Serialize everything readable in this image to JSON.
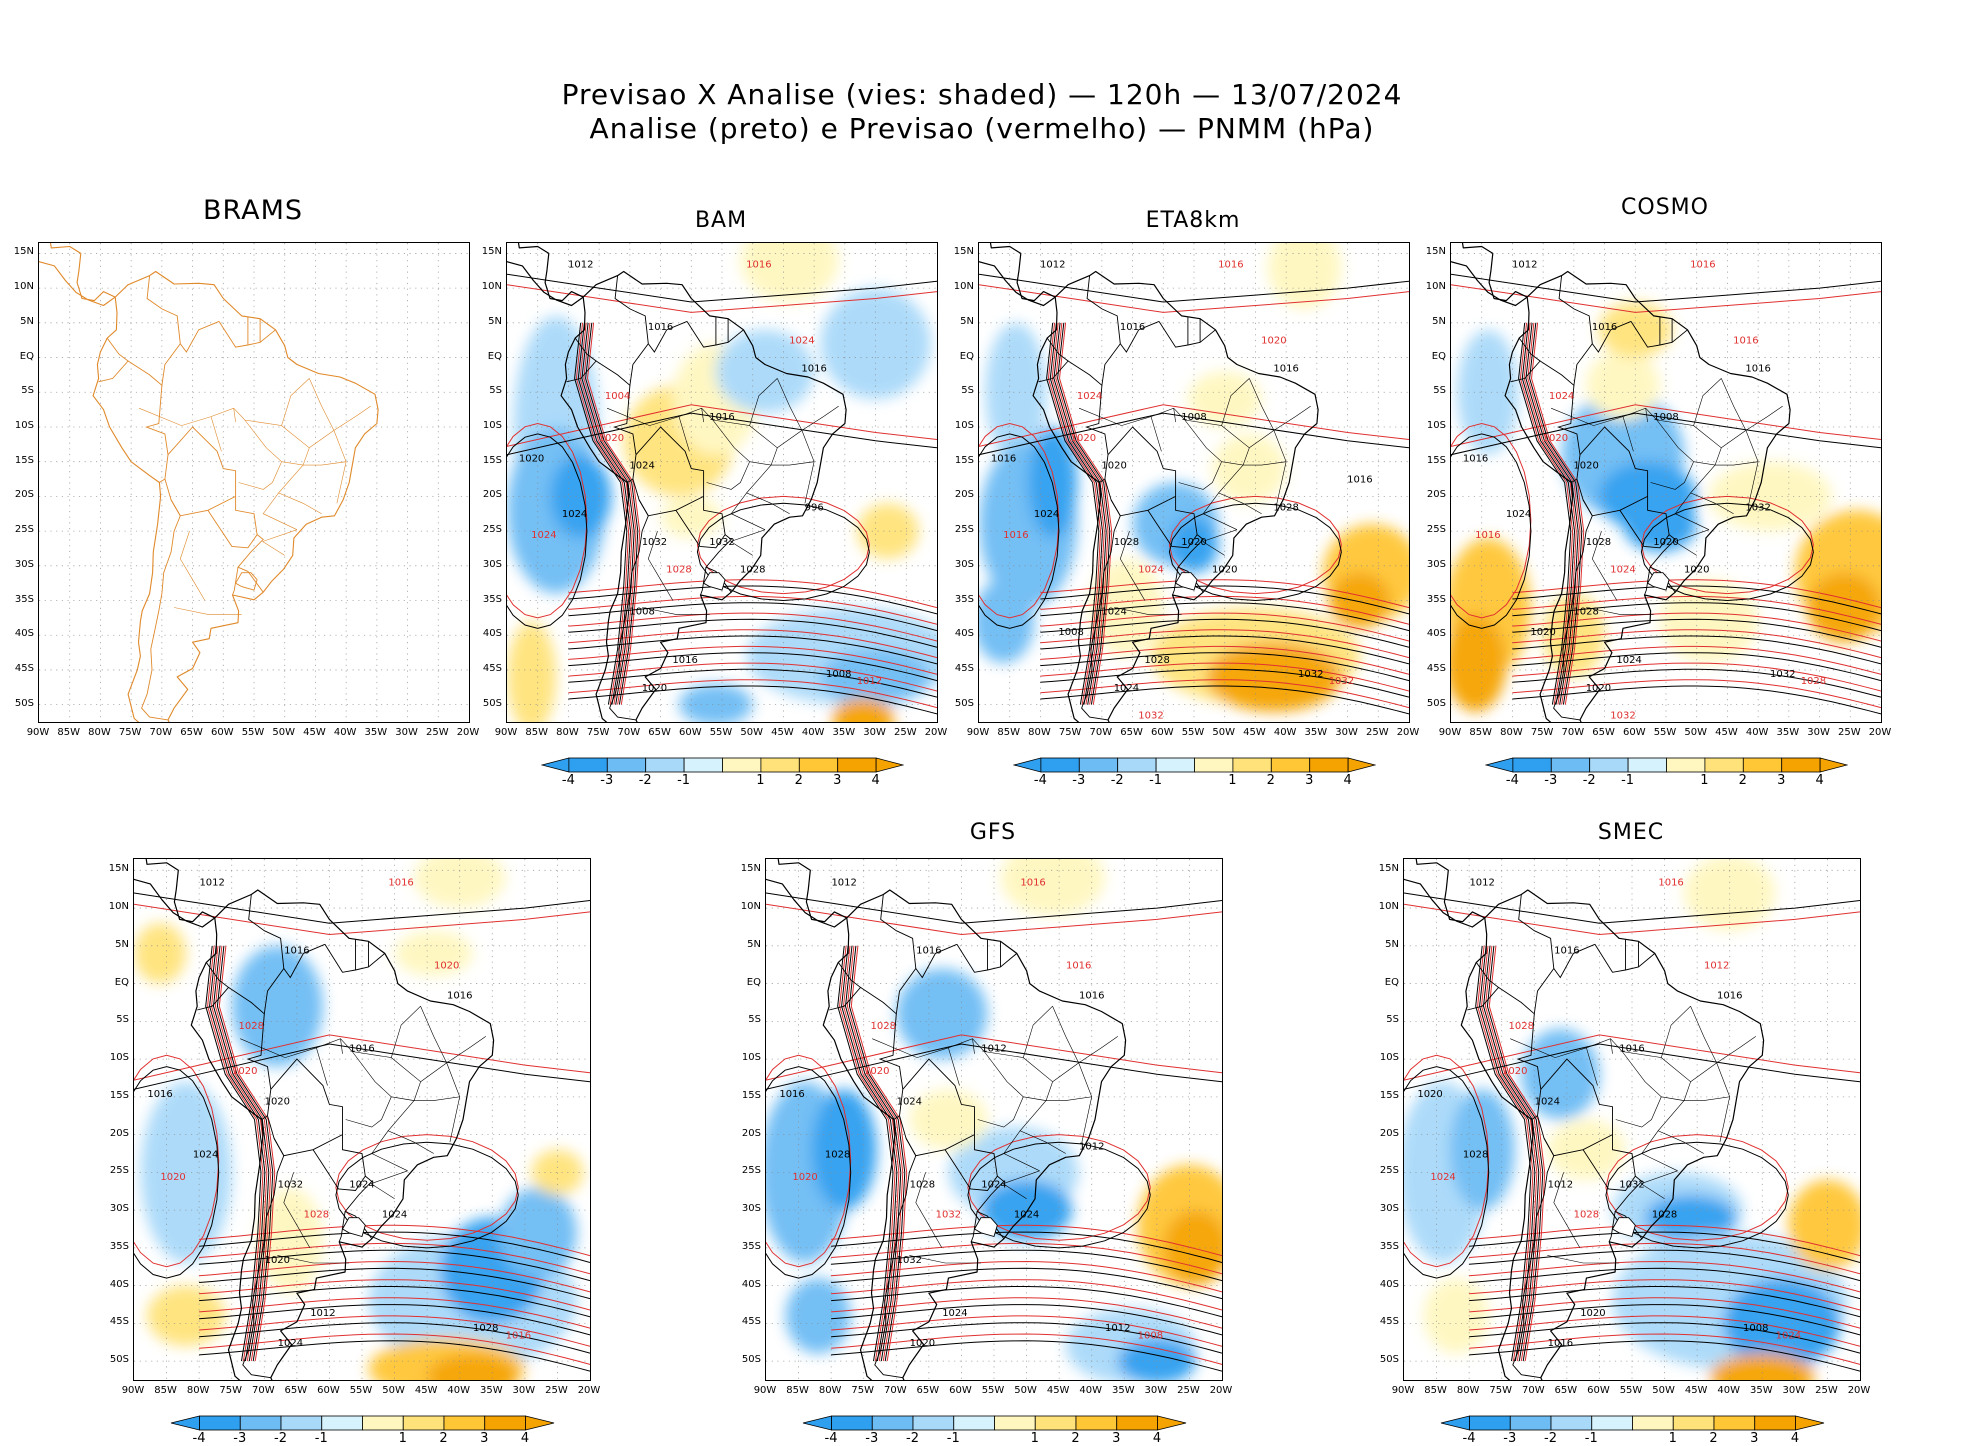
{
  "header": {
    "line1": "Previsao X Analise (vies: shaded) — 120h — 13/07/2024",
    "line2": "Analise (preto) e Previsao (vermelho) — PNMM (hPa)"
  },
  "colors": {
    "bias_neg4": "#2f9ff0",
    "bias_neg3": "#6dbcf4",
    "bias_neg2": "#a9d9f9",
    "bias_neg1": "#d6f2fd",
    "bias_zero": "#ffffff",
    "bias_pos1": "#fff7bf",
    "bias_pos2": "#ffe37a",
    "bias_pos3": "#ffc636",
    "bias_pos4": "#f5a300",
    "analysis_contour": "#000000",
    "forecast_contour": "#e03030",
    "coastline_brams": "#e0892a"
  },
  "axes": {
    "lat_labels": [
      "15N",
      "10N",
      "5N",
      "EQ",
      "5S",
      "10S",
      "15S",
      "20S",
      "25S",
      "30S",
      "35S",
      "40S",
      "45S",
      "50S"
    ],
    "lon_labels": [
      "90W",
      "85W",
      "80W",
      "75W",
      "70W",
      "65W",
      "60W",
      "55W",
      "50W",
      "45W",
      "40W",
      "35W",
      "30W",
      "25W",
      "20W"
    ]
  },
  "colorbar": {
    "labels": [
      "-4",
      "-3",
      "-2",
      "-1",
      "1",
      "2",
      "3",
      "4"
    ]
  },
  "panels": [
    {
      "id": "brams",
      "title": "BRAMS",
      "has_colorbar": false
    },
    {
      "id": "bam",
      "title": "BAM",
      "has_colorbar": true
    },
    {
      "id": "eta8km",
      "title": "ETA8km",
      "has_colorbar": true
    },
    {
      "id": "cosmo",
      "title": "COSMO",
      "has_colorbar": true
    },
    {
      "id": "model5",
      "title": "",
      "has_colorbar": true
    },
    {
      "id": "gfs",
      "title": "GFS",
      "has_colorbar": true
    },
    {
      "id": "smec",
      "title": "SMEC",
      "has_colorbar": true
    }
  ],
  "isobar_labels": {
    "bam": [
      "1012",
      "1016",
      "1016",
      "1016",
      "1020",
      "1024",
      "1024",
      "1028",
      "1032",
      "1008",
      "1012",
      "1016",
      "1020",
      "1024",
      "1016",
      "1020",
      "1024",
      "1028",
      "1032",
      "1004",
      "1008",
      "996"
    ],
    "eta8km": [
      "1012",
      "1016",
      "1016",
      "1016",
      "1020",
      "1020",
      "1024",
      "1024",
      "1028",
      "1032",
      "1032",
      "1028",
      "1024",
      "1020",
      "1008",
      "1016",
      "1016",
      "1020",
      "1020",
      "1024",
      "1024",
      "1028",
      "1032",
      "1008",
      "1016"
    ],
    "cosmo": [
      "1012",
      "1016",
      "1016",
      "1016",
      "1020",
      "1020",
      "1024",
      "1024",
      "1028",
      "1032",
      "1028",
      "1024",
      "1020",
      "1016",
      "1008",
      "1016",
      "1016",
      "1020",
      "1020",
      "1024",
      "1028",
      "1032",
      "1032",
      "1020"
    ],
    "model5": [
      "1012",
      "1016",
      "1016",
      "1016",
      "1020",
      "1020",
      "1024",
      "1028",
      "1032",
      "1028",
      "1016",
      "1012",
      "1024",
      "1020",
      "1016",
      "1016",
      "1020",
      "1024",
      "1024",
      "1028",
      "1020"
    ],
    "gfs": [
      "1012",
      "1016",
      "1016",
      "1016",
      "1020",
      "1024",
      "1028",
      "1032",
      "1028",
      "1012",
      "1008",
      "1024",
      "1020",
      "1016",
      "1012",
      "1016",
      "1020",
      "1024",
      "1024",
      "1028",
      "1032",
      "1012"
    ],
    "smec": [
      "1012",
      "1016",
      "1016",
      "1016",
      "1020",
      "1024",
      "1028",
      "1028",
      "1012",
      "1008",
      "1024",
      "1020",
      "1016",
      "1012",
      "1016",
      "1020",
      "1024",
      "1028",
      "1032",
      "1028"
    ]
  }
}
